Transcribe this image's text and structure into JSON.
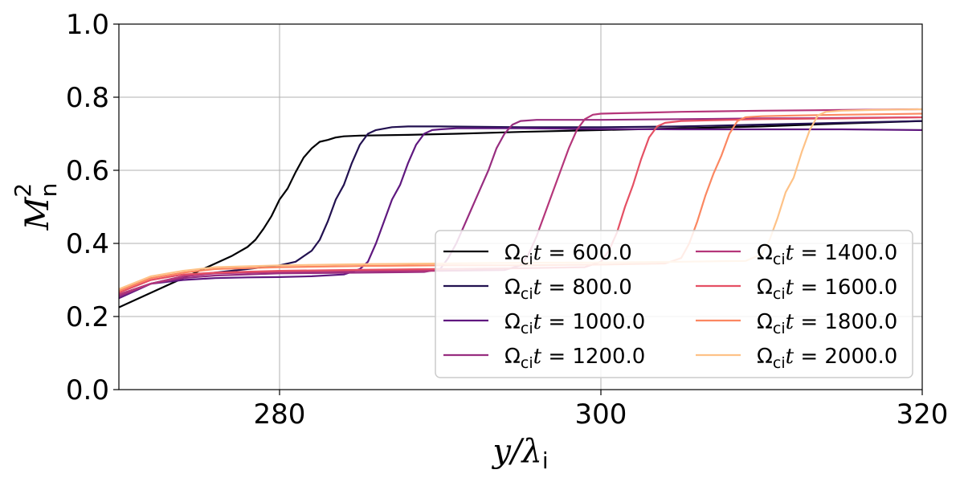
{
  "chart_data": {
    "type": "line",
    "title": "",
    "xlabel": "y/λ_i",
    "xlabel_main": "y/λ",
    "xlabel_sub": "i",
    "ylabel": "M_n^2",
    "ylabel_main": "M",
    "ylabel_sub": "n",
    "ylabel_sup": "2",
    "xlim": [
      270,
      320
    ],
    "ylim": [
      0.0,
      1.0
    ],
    "xticks": [
      280,
      300,
      320
    ],
    "xtick_labels": [
      "280",
      "300",
      "320"
    ],
    "yticks": [
      0.0,
      0.2,
      0.4,
      0.6,
      0.8,
      1.0
    ],
    "ytick_labels": [
      "0.0",
      "0.2",
      "0.4",
      "0.6",
      "0.8",
      "1.0"
    ],
    "grid": true,
    "legend_position": "lower-right",
    "legend_columns": 2,
    "series": [
      {
        "name": "600.0",
        "color": "#000004",
        "x": [
          270,
          271,
          272,
          273,
          274,
          275,
          276,
          277,
          278,
          278.5,
          279,
          279.5,
          280,
          280.5,
          281,
          281.5,
          282,
          282.5,
          283,
          283.5,
          284,
          285,
          288,
          291,
          295,
          300,
          305,
          310,
          315,
          320
        ],
        "y": [
          0.225,
          0.245,
          0.265,
          0.285,
          0.305,
          0.325,
          0.345,
          0.365,
          0.39,
          0.41,
          0.44,
          0.475,
          0.52,
          0.55,
          0.595,
          0.635,
          0.66,
          0.678,
          0.683,
          0.69,
          0.693,
          0.695,
          0.697,
          0.7,
          0.705,
          0.71,
          0.715,
          0.72,
          0.728,
          0.735
        ]
      },
      {
        "name": "800.0",
        "color": "#221150",
        "x": [
          270,
          272,
          274,
          276,
          278,
          280,
          281,
          282,
          282.5,
          283,
          283.5,
          284,
          284.5,
          285,
          285.5,
          286,
          287,
          288,
          290,
          295,
          300,
          305,
          310,
          315,
          320
        ],
        "y": [
          0.26,
          0.29,
          0.31,
          0.32,
          0.33,
          0.34,
          0.35,
          0.38,
          0.41,
          0.46,
          0.52,
          0.56,
          0.62,
          0.67,
          0.7,
          0.71,
          0.718,
          0.72,
          0.72,
          0.718,
          0.718,
          0.72,
          0.725,
          0.73,
          0.735
        ]
      },
      {
        "name": "1000.0",
        "color": "#5f187f",
        "x": [
          270,
          272,
          274,
          276,
          278,
          280,
          282,
          284,
          285,
          285.5,
          286,
          286.5,
          287,
          287.5,
          288,
          288.5,
          289,
          289.5,
          290,
          291,
          295,
          300,
          305,
          310,
          315,
          320
        ],
        "y": [
          0.25,
          0.29,
          0.3,
          0.305,
          0.307,
          0.308,
          0.31,
          0.315,
          0.33,
          0.35,
          0.4,
          0.46,
          0.52,
          0.56,
          0.62,
          0.67,
          0.7,
          0.71,
          0.712,
          0.715,
          0.715,
          0.713,
          0.712,
          0.712,
          0.712,
          0.71
        ]
      },
      {
        "name": "1200.0",
        "color": "#982d80",
        "x": [
          270,
          272,
          274,
          276,
          280,
          285,
          289,
          290,
          290.5,
          291,
          291.5,
          292,
          292.5,
          293,
          293.5,
          294,
          294.5,
          295,
          296,
          298,
          300,
          305,
          310,
          315,
          320
        ],
        "y": [
          0.255,
          0.29,
          0.305,
          0.312,
          0.318,
          0.32,
          0.322,
          0.33,
          0.36,
          0.4,
          0.45,
          0.5,
          0.55,
          0.6,
          0.66,
          0.7,
          0.725,
          0.735,
          0.738,
          0.738,
          0.738,
          0.74,
          0.742,
          0.743,
          0.745
        ]
      },
      {
        "name": "1400.0",
        "color": "#b5367a",
        "x": [
          270,
          272,
          274,
          276,
          280,
          285,
          290,
          294,
          295,
          295.5,
          296,
          296.5,
          297,
          297.5,
          298,
          298.5,
          299,
          299.5,
          300,
          301,
          303,
          305,
          310,
          315,
          320
        ],
        "y": [
          0.26,
          0.29,
          0.31,
          0.318,
          0.322,
          0.325,
          0.325,
          0.327,
          0.34,
          0.37,
          0.42,
          0.48,
          0.54,
          0.6,
          0.66,
          0.71,
          0.74,
          0.752,
          0.755,
          0.756,
          0.758,
          0.76,
          0.763,
          0.765,
          0.767
        ]
      },
      {
        "name": "1600.0",
        "color": "#e55064",
        "x": [
          270,
          272,
          274,
          276,
          280,
          285,
          290,
          295,
          299,
          300,
          300.5,
          301,
          301.5,
          302,
          302.5,
          303,
          303.5,
          304,
          305,
          307,
          310,
          315,
          320
        ],
        "y": [
          0.265,
          0.3,
          0.315,
          0.32,
          0.325,
          0.328,
          0.33,
          0.332,
          0.335,
          0.35,
          0.38,
          0.43,
          0.5,
          0.56,
          0.63,
          0.69,
          0.72,
          0.73,
          0.735,
          0.737,
          0.74,
          0.742,
          0.745
        ]
      },
      {
        "name": "1800.0",
        "color": "#fb8761",
        "x": [
          270,
          272,
          274,
          276,
          280,
          285,
          290,
          295,
          300,
          304,
          305,
          305.5,
          306,
          306.5,
          307,
          307.5,
          308,
          308.5,
          309,
          310,
          312,
          315,
          320
        ],
        "y": [
          0.27,
          0.305,
          0.32,
          0.33,
          0.335,
          0.338,
          0.34,
          0.34,
          0.342,
          0.345,
          0.36,
          0.4,
          0.46,
          0.53,
          0.59,
          0.64,
          0.7,
          0.735,
          0.745,
          0.748,
          0.75,
          0.752,
          0.755
        ]
      },
      {
        "name": "2000.0",
        "color": "#fec287",
        "x": [
          270,
          272,
          274,
          276,
          280,
          285,
          290,
          295,
          300,
          305,
          309,
          310,
          310.5,
          311,
          311.5,
          312,
          312.5,
          313,
          313.5,
          314,
          315,
          317,
          320
        ],
        "y": [
          0.275,
          0.31,
          0.325,
          0.335,
          0.34,
          0.343,
          0.345,
          0.347,
          0.348,
          0.35,
          0.352,
          0.37,
          0.41,
          0.47,
          0.54,
          0.58,
          0.65,
          0.71,
          0.75,
          0.76,
          0.763,
          0.765,
          0.767
        ]
      }
    ],
    "legend_prefix_main": "Ω",
    "legend_prefix_sub": "ci",
    "legend_var": "t",
    "legend_eq": " = "
  }
}
